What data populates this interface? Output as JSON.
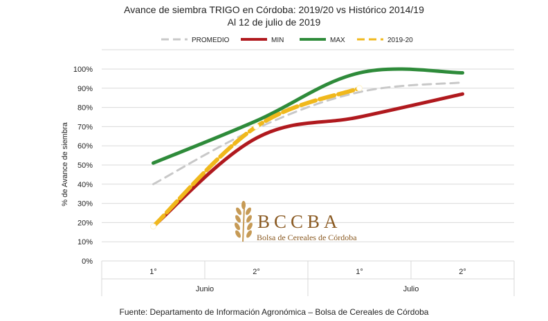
{
  "chart_data": {
    "type": "line",
    "title": "Avance de siembra TRIGO en Córdoba: 2019/20 vs Histórico 2014/19",
    "subtitle": "Al 12 de julio de 2019",
    "ylabel": "% de Avance de siembra",
    "xlabel": "",
    "ylim": [
      0,
      100
    ],
    "yticks": [
      "0%",
      "10%",
      "20%",
      "30%",
      "40%",
      "50%",
      "60%",
      "70%",
      "80%",
      "90%",
      "100%"
    ],
    "categories": [
      "1°",
      "2°",
      "1°",
      "2°"
    ],
    "groups": [
      {
        "label": "Junio",
        "span": [
          0,
          1
        ]
      },
      {
        "label": "Julio",
        "span": [
          2,
          3
        ]
      }
    ],
    "grid": true,
    "legend_position": "top",
    "series": [
      {
        "name": "PROMEDIO",
        "color": "#c8c8c8",
        "dash": true,
        "values": [
          40,
          69,
          88,
          93
        ]
      },
      {
        "name": "MIN",
        "color": "#b0191e",
        "dash": false,
        "values": [
          18,
          64,
          75,
          87
        ]
      },
      {
        "name": "MAX",
        "color": "#2e8b3a",
        "dash": false,
        "values": [
          51,
          73,
          98,
          98
        ]
      },
      {
        "name": "2019-20",
        "color": "#f0b81c",
        "dash": true,
        "values": [
          18,
          70,
          90,
          null
        ]
      }
    ],
    "source": "Fuente: Departamento de Información Agronómica – Bolsa de Cereales de Córdoba"
  },
  "logo": {
    "name": "BCCBA",
    "full_name": "Bolsa de Cereales de Córdoba"
  }
}
